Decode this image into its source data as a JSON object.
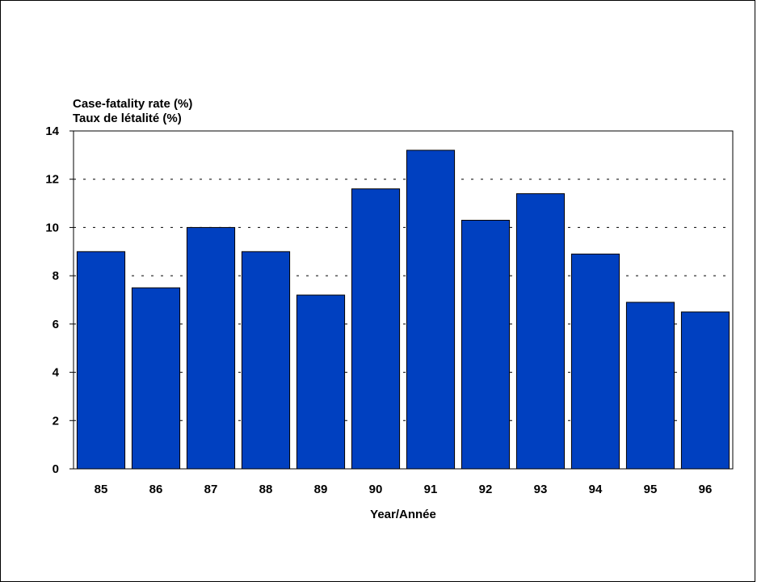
{
  "chart_data": {
    "type": "bar",
    "ylabel_lines": [
      "Case-fatality rate (%)",
      "Taux de létalité (%)"
    ],
    "xlabel": "Year/Année",
    "categories": [
      "85",
      "86",
      "87",
      "88",
      "89",
      "90",
      "91",
      "92",
      "93",
      "94",
      "95",
      "96"
    ],
    "values": [
      9.0,
      7.5,
      10.0,
      9.0,
      7.2,
      11.6,
      13.2,
      10.3,
      11.4,
      8.9,
      6.9,
      6.5
    ],
    "ylim": [
      0,
      14
    ],
    "yticks": [
      "0",
      "2",
      "4",
      "6",
      "8",
      "10",
      "12",
      "14"
    ],
    "grid": "horizontal dashed",
    "bar_color": "#0040C0"
  }
}
